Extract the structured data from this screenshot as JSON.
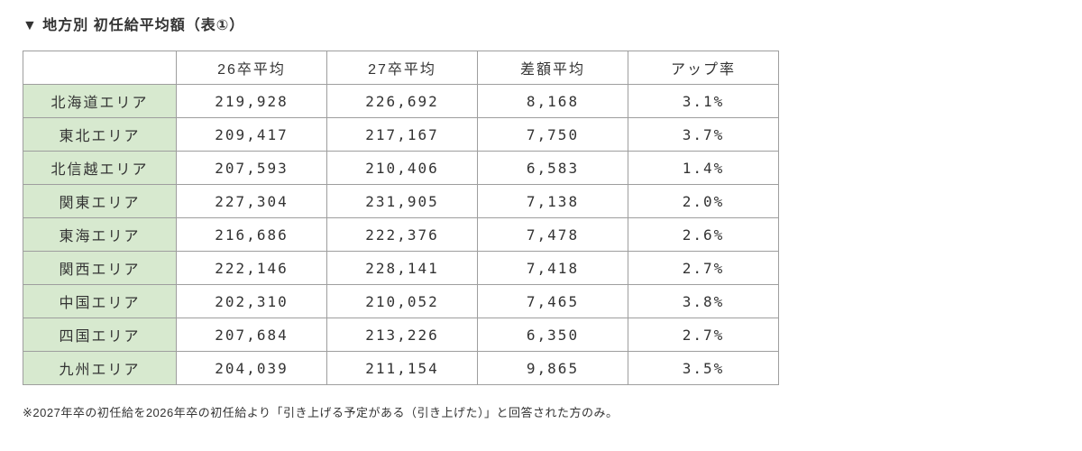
{
  "page": {
    "title": "▼ 地方別 初任給平均額（表①）",
    "footnote": "※2027年卒の初任給を2026年卒の初任給より「引き上げる予定がある（引き上げた）」と回答された方のみ。"
  },
  "chart_data": {
    "type": "table",
    "title": "地方別 初任給平均額（表①）",
    "columns": [
      "",
      "26卒平均",
      "27卒平均",
      "差額平均",
      "アップ率"
    ],
    "rows": [
      {
        "region": "北海道エリア",
        "avg26": "219,928",
        "avg27": "226,692",
        "diff": "8,168",
        "rate": "3.1%"
      },
      {
        "region": "東北エリア",
        "avg26": "209,417",
        "avg27": "217,167",
        "diff": "7,750",
        "rate": "3.7%"
      },
      {
        "region": "北信越エリア",
        "avg26": "207,593",
        "avg27": "210,406",
        "diff": "6,583",
        "rate": "1.4%"
      },
      {
        "region": "関東エリア",
        "avg26": "227,304",
        "avg27": "231,905",
        "diff": "7,138",
        "rate": "2.0%"
      },
      {
        "region": "東海エリア",
        "avg26": "216,686",
        "avg27": "222,376",
        "diff": "7,478",
        "rate": "2.6%"
      },
      {
        "region": "関西エリア",
        "avg26": "222,146",
        "avg27": "228,141",
        "diff": "7,418",
        "rate": "2.7%"
      },
      {
        "region": "中国エリア",
        "avg26": "202,310",
        "avg27": "210,052",
        "diff": "7,465",
        "rate": "3.8%"
      },
      {
        "region": "四国エリア",
        "avg26": "207,684",
        "avg27": "213,226",
        "diff": "6,350",
        "rate": "2.7%"
      },
      {
        "region": "九州エリア",
        "avg26": "204,039",
        "avg27": "211,154",
        "diff": "9,865",
        "rate": "3.5%"
      }
    ],
    "colors": {
      "region_cell_bg": "#d7e9cf",
      "border": "#9e9e9e",
      "text": "#333333"
    }
  }
}
